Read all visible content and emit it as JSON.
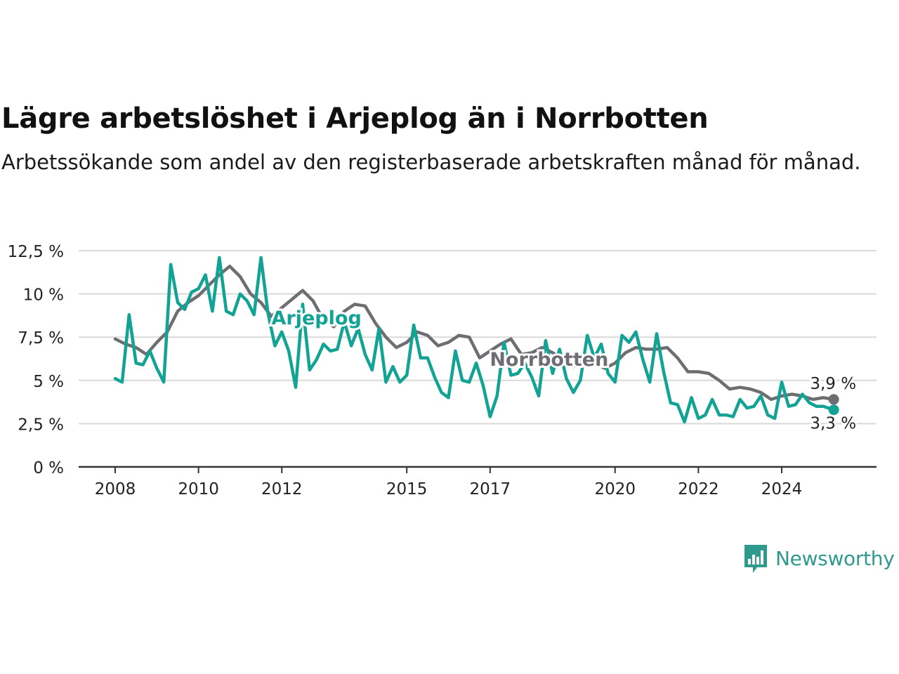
{
  "colors": {
    "arjeplog": "#12a395",
    "norrbotten": "#6e6e72",
    "grid": "#d9d9d9",
    "axis": "#333333",
    "brand": "#2e9a8e"
  },
  "brand": {
    "name": "Newsworthy",
    "icon": "bar-chart-speech-bubble-icon"
  },
  "chart_data": {
    "type": "line",
    "title": "Lägre arbetslöshet i Arjeplog än i Norrbotten",
    "subtitle": "Arbetssökande som andel av den registerbaserade arbetskraften månad för månad.",
    "xlabel": "",
    "ylabel": "",
    "ylim": [
      0,
      12.5
    ],
    "xlim": [
      "2008-01",
      "2025-06"
    ],
    "y_ticks": [
      {
        "value": 0,
        "label": "0 %"
      },
      {
        "value": 2.5,
        "label": "2,5 %"
      },
      {
        "value": 5,
        "label": "5 %"
      },
      {
        "value": 7.5,
        "label": "7,5 %"
      },
      {
        "value": 10,
        "label": "10 %"
      },
      {
        "value": 12.5,
        "label": "12,5 %"
      }
    ],
    "x_ticks": [
      {
        "date": "2008-01",
        "label": "2008"
      },
      {
        "date": "2010-01",
        "label": "2010"
      },
      {
        "date": "2012-01",
        "label": "2012"
      },
      {
        "date": "2015-01",
        "label": "2015"
      },
      {
        "date": "2017-01",
        "label": "2017"
      },
      {
        "date": "2020-01",
        "label": "2020"
      },
      {
        "date": "2022-01",
        "label": "2022"
      },
      {
        "date": "2024-01",
        "label": "2024"
      }
    ],
    "grid": true,
    "series": [
      {
        "name": "Norrbotten",
        "end_label": "3,9 %",
        "points": [
          [
            "2008-01",
            7.4
          ],
          [
            "2008-04",
            7.1
          ],
          [
            "2008-07",
            6.9
          ],
          [
            "2008-10",
            6.5
          ],
          [
            "2009-01",
            7.2
          ],
          [
            "2009-04",
            7.8
          ],
          [
            "2009-07",
            9.0
          ],
          [
            "2009-10",
            9.5
          ],
          [
            "2010-01",
            9.9
          ],
          [
            "2010-04",
            10.5
          ],
          [
            "2010-07",
            11.1
          ],
          [
            "2010-10",
            11.6
          ],
          [
            "2011-01",
            11.0
          ],
          [
            "2011-04",
            10.0
          ],
          [
            "2011-07",
            9.5
          ],
          [
            "2011-10",
            8.7
          ],
          [
            "2012-01",
            9.2
          ],
          [
            "2012-04",
            9.7
          ],
          [
            "2012-07",
            10.2
          ],
          [
            "2012-10",
            9.6
          ],
          [
            "2013-01",
            8.5
          ],
          [
            "2013-04",
            8.1
          ],
          [
            "2013-07",
            9.0
          ],
          [
            "2013-10",
            9.4
          ],
          [
            "2014-01",
            9.3
          ],
          [
            "2014-04",
            8.3
          ],
          [
            "2014-07",
            7.5
          ],
          [
            "2014-10",
            6.9
          ],
          [
            "2015-01",
            7.2
          ],
          [
            "2015-04",
            7.8
          ],
          [
            "2015-07",
            7.6
          ],
          [
            "2015-10",
            7.0
          ],
          [
            "2016-01",
            7.2
          ],
          [
            "2016-04",
            7.6
          ],
          [
            "2016-07",
            7.5
          ],
          [
            "2016-10",
            6.3
          ],
          [
            "2017-01",
            6.7
          ],
          [
            "2017-04",
            7.1
          ],
          [
            "2017-07",
            7.4
          ],
          [
            "2017-10",
            6.5
          ],
          [
            "2018-01",
            6.6
          ],
          [
            "2018-04",
            6.9
          ],
          [
            "2018-07",
            6.6
          ],
          [
            "2018-10",
            6.2
          ],
          [
            "2019-01",
            5.8
          ],
          [
            "2019-04",
            6.4
          ],
          [
            "2019-07",
            6.0
          ],
          [
            "2019-10",
            5.7
          ],
          [
            "2020-01",
            6.0
          ],
          [
            "2020-04",
            6.6
          ],
          [
            "2020-07",
            6.9
          ],
          [
            "2020-10",
            6.8
          ],
          [
            "2021-01",
            6.8
          ],
          [
            "2021-04",
            6.9
          ],
          [
            "2021-07",
            6.3
          ],
          [
            "2021-10",
            5.5
          ],
          [
            "2022-01",
            5.5
          ],
          [
            "2022-04",
            5.4
          ],
          [
            "2022-07",
            5.0
          ],
          [
            "2022-10",
            4.5
          ],
          [
            "2023-01",
            4.6
          ],
          [
            "2023-04",
            4.5
          ],
          [
            "2023-07",
            4.3
          ],
          [
            "2023-10",
            3.9
          ],
          [
            "2024-01",
            4.1
          ],
          [
            "2024-04",
            4.2
          ],
          [
            "2024-07",
            4.1
          ],
          [
            "2024-10",
            3.9
          ],
          [
            "2025-01",
            4.0
          ],
          [
            "2025-04",
            3.9
          ]
        ]
      },
      {
        "name": "Arjeplog",
        "end_label": "3,3 %",
        "points": [
          [
            "2008-01",
            5.1
          ],
          [
            "2008-03",
            4.9
          ],
          [
            "2008-05",
            8.8
          ],
          [
            "2008-07",
            6.0
          ],
          [
            "2008-09",
            5.9
          ],
          [
            "2008-11",
            6.7
          ],
          [
            "2009-01",
            5.7
          ],
          [
            "2009-03",
            4.9
          ],
          [
            "2009-05",
            11.7
          ],
          [
            "2009-07",
            9.5
          ],
          [
            "2009-09",
            9.1
          ],
          [
            "2009-11",
            10.1
          ],
          [
            "2010-01",
            10.3
          ],
          [
            "2010-03",
            11.1
          ],
          [
            "2010-05",
            9.0
          ],
          [
            "2010-07",
            12.1
          ],
          [
            "2010-09",
            9.0
          ],
          [
            "2010-11",
            8.8
          ],
          [
            "2011-01",
            10.0
          ],
          [
            "2011-03",
            9.6
          ],
          [
            "2011-05",
            8.8
          ],
          [
            "2011-07",
            12.1
          ],
          [
            "2011-09",
            8.9
          ],
          [
            "2011-11",
            7.0
          ],
          [
            "2012-01",
            7.8
          ],
          [
            "2012-03",
            6.7
          ],
          [
            "2012-05",
            4.6
          ],
          [
            "2012-07",
            9.4
          ],
          [
            "2012-09",
            5.6
          ],
          [
            "2012-11",
            6.2
          ],
          [
            "2013-01",
            7.1
          ],
          [
            "2013-03",
            6.7
          ],
          [
            "2013-05",
            6.8
          ],
          [
            "2013-07",
            8.4
          ],
          [
            "2013-09",
            7.0
          ],
          [
            "2013-11",
            8.0
          ],
          [
            "2014-01",
            6.5
          ],
          [
            "2014-03",
            5.6
          ],
          [
            "2014-05",
            8.0
          ],
          [
            "2014-07",
            4.9
          ],
          [
            "2014-09",
            5.8
          ],
          [
            "2014-11",
            4.9
          ],
          [
            "2015-01",
            5.3
          ],
          [
            "2015-03",
            8.2
          ],
          [
            "2015-05",
            6.3
          ],
          [
            "2015-07",
            6.3
          ],
          [
            "2015-09",
            5.2
          ],
          [
            "2015-11",
            4.3
          ],
          [
            "2016-01",
            4.0
          ],
          [
            "2016-03",
            6.7
          ],
          [
            "2016-05",
            5.0
          ],
          [
            "2016-07",
            4.9
          ],
          [
            "2016-09",
            6.0
          ],
          [
            "2016-11",
            4.7
          ],
          [
            "2017-01",
            2.9
          ],
          [
            "2017-03",
            4.1
          ],
          [
            "2017-05",
            7.2
          ],
          [
            "2017-07",
            5.3
          ],
          [
            "2017-09",
            5.4
          ],
          [
            "2017-11",
            6.0
          ],
          [
            "2018-01",
            5.2
          ],
          [
            "2018-03",
            4.1
          ],
          [
            "2018-05",
            7.3
          ],
          [
            "2018-07",
            5.4
          ],
          [
            "2018-09",
            6.8
          ],
          [
            "2018-11",
            5.1
          ],
          [
            "2019-01",
            4.3
          ],
          [
            "2019-03",
            5.0
          ],
          [
            "2019-05",
            7.6
          ],
          [
            "2019-07",
            6.3
          ],
          [
            "2019-09",
            7.1
          ],
          [
            "2019-11",
            5.4
          ],
          [
            "2020-01",
            4.9
          ],
          [
            "2020-03",
            7.6
          ],
          [
            "2020-05",
            7.2
          ],
          [
            "2020-07",
            7.8
          ],
          [
            "2020-09",
            6.2
          ],
          [
            "2020-11",
            4.9
          ],
          [
            "2021-01",
            7.7
          ],
          [
            "2021-03",
            5.5
          ],
          [
            "2021-05",
            3.7
          ],
          [
            "2021-07",
            3.6
          ],
          [
            "2021-09",
            2.6
          ],
          [
            "2021-11",
            4.0
          ],
          [
            "2022-01",
            2.8
          ],
          [
            "2022-03",
            3.0
          ],
          [
            "2022-05",
            3.9
          ],
          [
            "2022-07",
            3.0
          ],
          [
            "2022-09",
            3.0
          ],
          [
            "2022-11",
            2.9
          ],
          [
            "2023-01",
            3.9
          ],
          [
            "2023-03",
            3.4
          ],
          [
            "2023-05",
            3.5
          ],
          [
            "2023-07",
            4.1
          ],
          [
            "2023-09",
            3.0
          ],
          [
            "2023-11",
            2.8
          ],
          [
            "2024-01",
            4.9
          ],
          [
            "2024-03",
            3.5
          ],
          [
            "2024-05",
            3.6
          ],
          [
            "2024-07",
            4.2
          ],
          [
            "2024-09",
            3.7
          ],
          [
            "2024-11",
            3.5
          ],
          [
            "2025-01",
            3.5
          ],
          [
            "2025-04",
            3.3
          ]
        ]
      }
    ],
    "series_labels": [
      {
        "series": "Arjeplog",
        "text": "Arjeplog",
        "at_date": "2012-11",
        "at_value": 8.6
      },
      {
        "series": "Norrbotten",
        "text": "Norrbotten",
        "at_date": "2018-06",
        "at_value": 6.2
      }
    ]
  }
}
